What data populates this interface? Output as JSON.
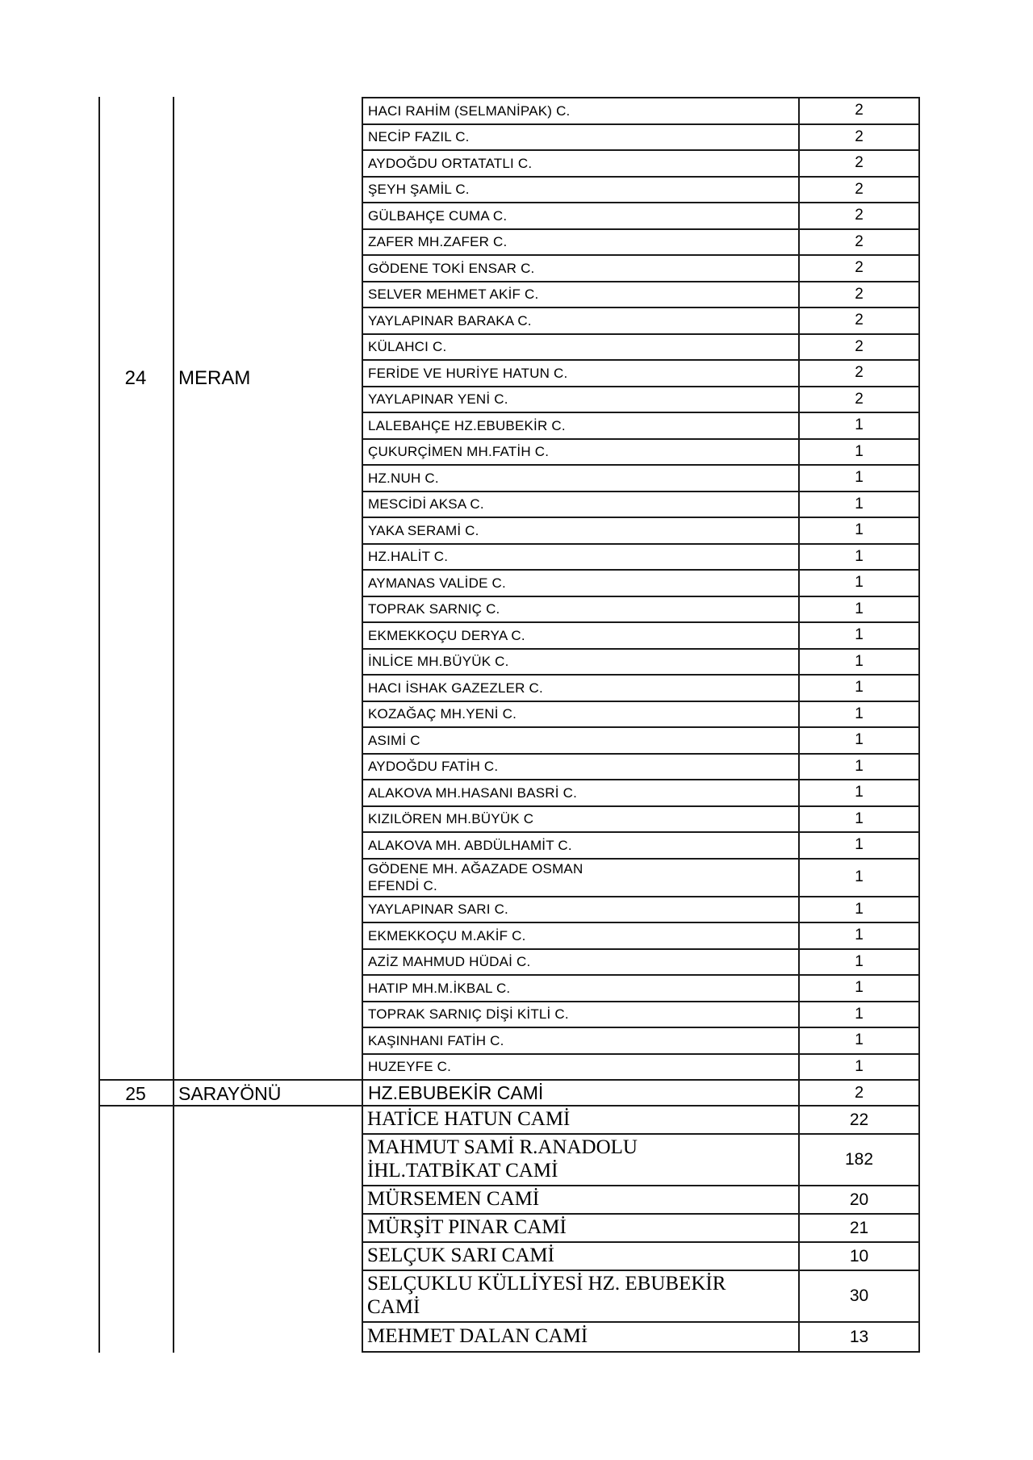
{
  "page": {
    "background": "#ffffff",
    "text_color": "#000000",
    "border_color": "#1a1a1a"
  },
  "columns": {
    "row_number": "",
    "district": "",
    "mosque_name": "",
    "count": ""
  },
  "sections": [
    {
      "row_no": "24",
      "district": "MERAM",
      "mosques": [
        {
          "name": "HACI RAHİM (SELMANİPAK) C.",
          "count": "2"
        },
        {
          "name": "NECİP FAZIL C.",
          "count": "2"
        },
        {
          "name": "AYDOĞDU ORTATATLI C.",
          "count": "2"
        },
        {
          "name": "ŞEYH ŞAMİL C.",
          "count": "2"
        },
        {
          "name": "GÜLBAHÇE CUMA C.",
          "count": "2"
        },
        {
          "name": "ZAFER MH.ZAFER C.",
          "count": "2"
        },
        {
          "name": "GÖDENE TOKİ ENSAR C.",
          "count": "2"
        },
        {
          "name": "SELVER MEHMET AKİF C.",
          "count": "2"
        },
        {
          "name": "YAYLAPINAR BARAKA C.",
          "count": "2"
        },
        {
          "name": "KÜLAHCI C.",
          "count": "2"
        },
        {
          "name": "FERİDE VE HURİYE HATUN C.",
          "count": "2"
        },
        {
          "name": "YAYLAPINAR YENİ C.",
          "count": "2"
        },
        {
          "name": "LALEBAHÇE HZ.EBUBEKİR C.",
          "count": "1"
        },
        {
          "name": "ÇUKURÇİMEN MH.FATİH C.",
          "count": "1"
        },
        {
          "name": "HZ.NUH C.",
          "count": "1"
        },
        {
          "name": "MESCİDİ AKSA C.",
          "count": "1"
        },
        {
          "name": "YAKA SERAMİ C.",
          "count": "1"
        },
        {
          "name": "HZ.HALİT C.",
          "count": "1"
        },
        {
          "name": "AYMANAS VALİDE C.",
          "count": "1"
        },
        {
          "name": "TOPRAK SARNIÇ C.",
          "count": "1"
        },
        {
          "name": "EKMEKKOÇU DERYA C.",
          "count": "1"
        },
        {
          "name": "İNLİCE MH.BÜYÜK C.",
          "count": "1"
        },
        {
          "name": "HACI İSHAK GAZEZLER C.",
          "count": "1"
        },
        {
          "name": "KOZAĞAÇ MH.YENİ C.",
          "count": "1"
        },
        {
          "name": "ASIMİ C",
          "count": "1"
        },
        {
          "name": "AYDOĞDU FATİH C.",
          "count": "1"
        },
        {
          "name": "ALAKOVA MH.HASANI BASRİ C.",
          "count": "1"
        },
        {
          "name": "KIZILÖREN MH.BÜYÜK C",
          "count": "1"
        },
        {
          "name": "ALAKOVA MH. ABDÜLHAMİT C.",
          "count": "1"
        },
        {
          "name": "GÖDENE MH. AĞAZADE OSMAN\nEFENDİ C.",
          "count": "1"
        },
        {
          "name": "YAYLAPINAR SARI C.",
          "count": "1"
        },
        {
          "name": "EKMEKKOÇU M.AKİF C.",
          "count": "1"
        },
        {
          "name": "AZİZ MAHMUD HÜDAİ C.",
          "count": "1"
        },
        {
          "name": "HATIP MH.M.İKBAL C.",
          "count": "1"
        },
        {
          "name": "TOPRAK SARNIÇ DİŞİ KİTLİ C.",
          "count": "1"
        },
        {
          "name": "KAŞINHANI FATİH C.",
          "count": "1"
        },
        {
          "name": "HUZEYFE C.",
          "count": "1"
        }
      ]
    },
    {
      "row_no": "25",
      "district": "SARAYÖNÜ",
      "mosques": [
        {
          "name": "HZ.EBUBEKİR CAMİ",
          "count": "2"
        }
      ]
    },
    {
      "row_no": "",
      "district": "",
      "mosques": [
        {
          "name": "HATİCE HATUN CAMİ",
          "count": "22"
        },
        {
          "name": "MAHMUT SAMİ R.ANADOLU\nİHL.TATBİKAT CAMİ",
          "count": "182"
        },
        {
          "name": "MÜRSEMEN CAMİ",
          "count": "20"
        },
        {
          "name": "MÜRŞİT PINAR CAMİ",
          "count": "21"
        },
        {
          "name": "SELÇUK SARI CAMİ",
          "count": "10"
        },
        {
          "name": "SELÇUKLU KÜLLİYESİ HZ. EBUBEKİR\nCAMİ",
          "count": "30"
        },
        {
          "name": "MEHMET DALAN CAMİ",
          "count": "13"
        }
      ]
    }
  ]
}
